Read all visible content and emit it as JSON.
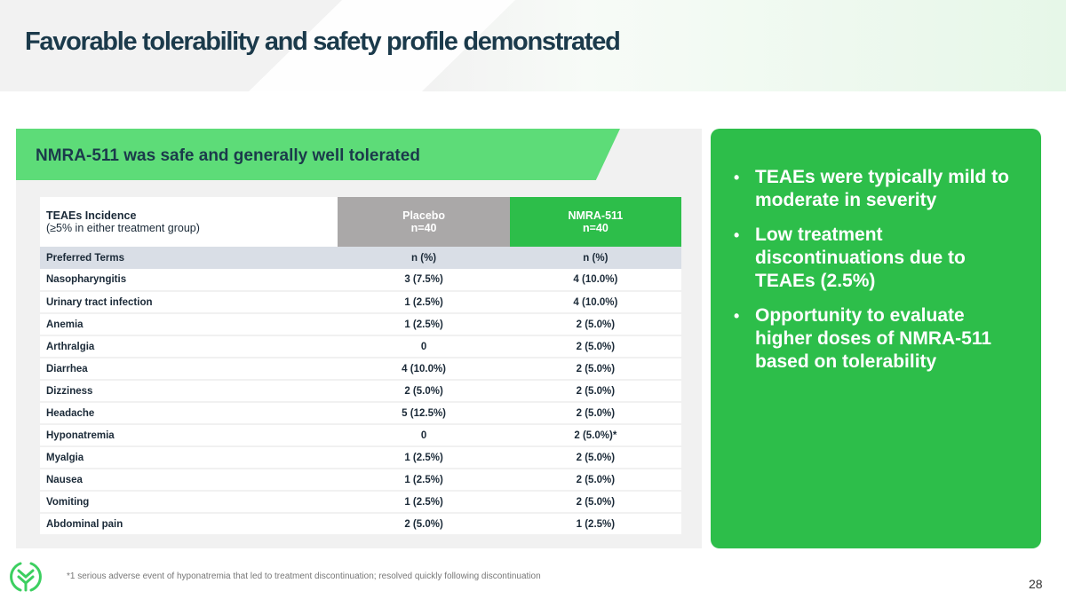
{
  "title": "Favorable tolerability and safety profile demonstrated",
  "banner": "NMRA-511 was safe and generally well tolerated",
  "table": {
    "header": {
      "label": "TEAEs Incidence",
      "sublabel": "(≥5% in either treatment group)",
      "placebo": "Placebo",
      "placebo_n": "n=40",
      "drug": "NMRA-511",
      "drug_n": "n=40"
    },
    "subheader": [
      "Preferred Terms",
      "n (%)",
      "n (%)"
    ],
    "rows": [
      [
        "Nasopharyngitis",
        "3 (7.5%)",
        "4 (10.0%)"
      ],
      [
        "Urinary tract infection",
        "1 (2.5%)",
        "4 (10.0%)"
      ],
      [
        "Anemia",
        "1 (2.5%)",
        "2 (5.0%)"
      ],
      [
        "Arthralgia",
        "0",
        "2 (5.0%)"
      ],
      [
        "Diarrhea",
        "4 (10.0%)",
        "2 (5.0%)"
      ],
      [
        "Dizziness",
        "2 (5.0%)",
        "2 (5.0%)"
      ],
      [
        "Headache",
        "5 (12.5%)",
        "2 (5.0%)"
      ],
      [
        "Hyponatremia",
        "0",
        "2 (5.0%)*"
      ],
      [
        "Myalgia",
        "1 (2.5%)",
        "2 (5.0%)"
      ],
      [
        "Nausea",
        "1 (2.5%)",
        "2 (5.0%)"
      ],
      [
        "Vomiting",
        "1 (2.5%)",
        "2 (5.0%)"
      ],
      [
        "Abdominal pain",
        "2 (5.0%)",
        "1 (2.5%)"
      ]
    ]
  },
  "bullets": [
    "TEAEs were typically mild to moderate in severity",
    "Low treatment discontinuations due to TEAEs (2.5%)",
    "Opportunity to evaluate higher doses of NMRA-511 based on tolerability"
  ],
  "footnote": "*1 serious adverse event of hyponatremia that led to treatment discontinuation; resolved quickly following discontinuation",
  "page_number": "28",
  "colors": {
    "accent": "#2dbe4a",
    "banner": "#5ddc78",
    "title": "#1b3a4b",
    "placebo": "#aaa8a8"
  }
}
